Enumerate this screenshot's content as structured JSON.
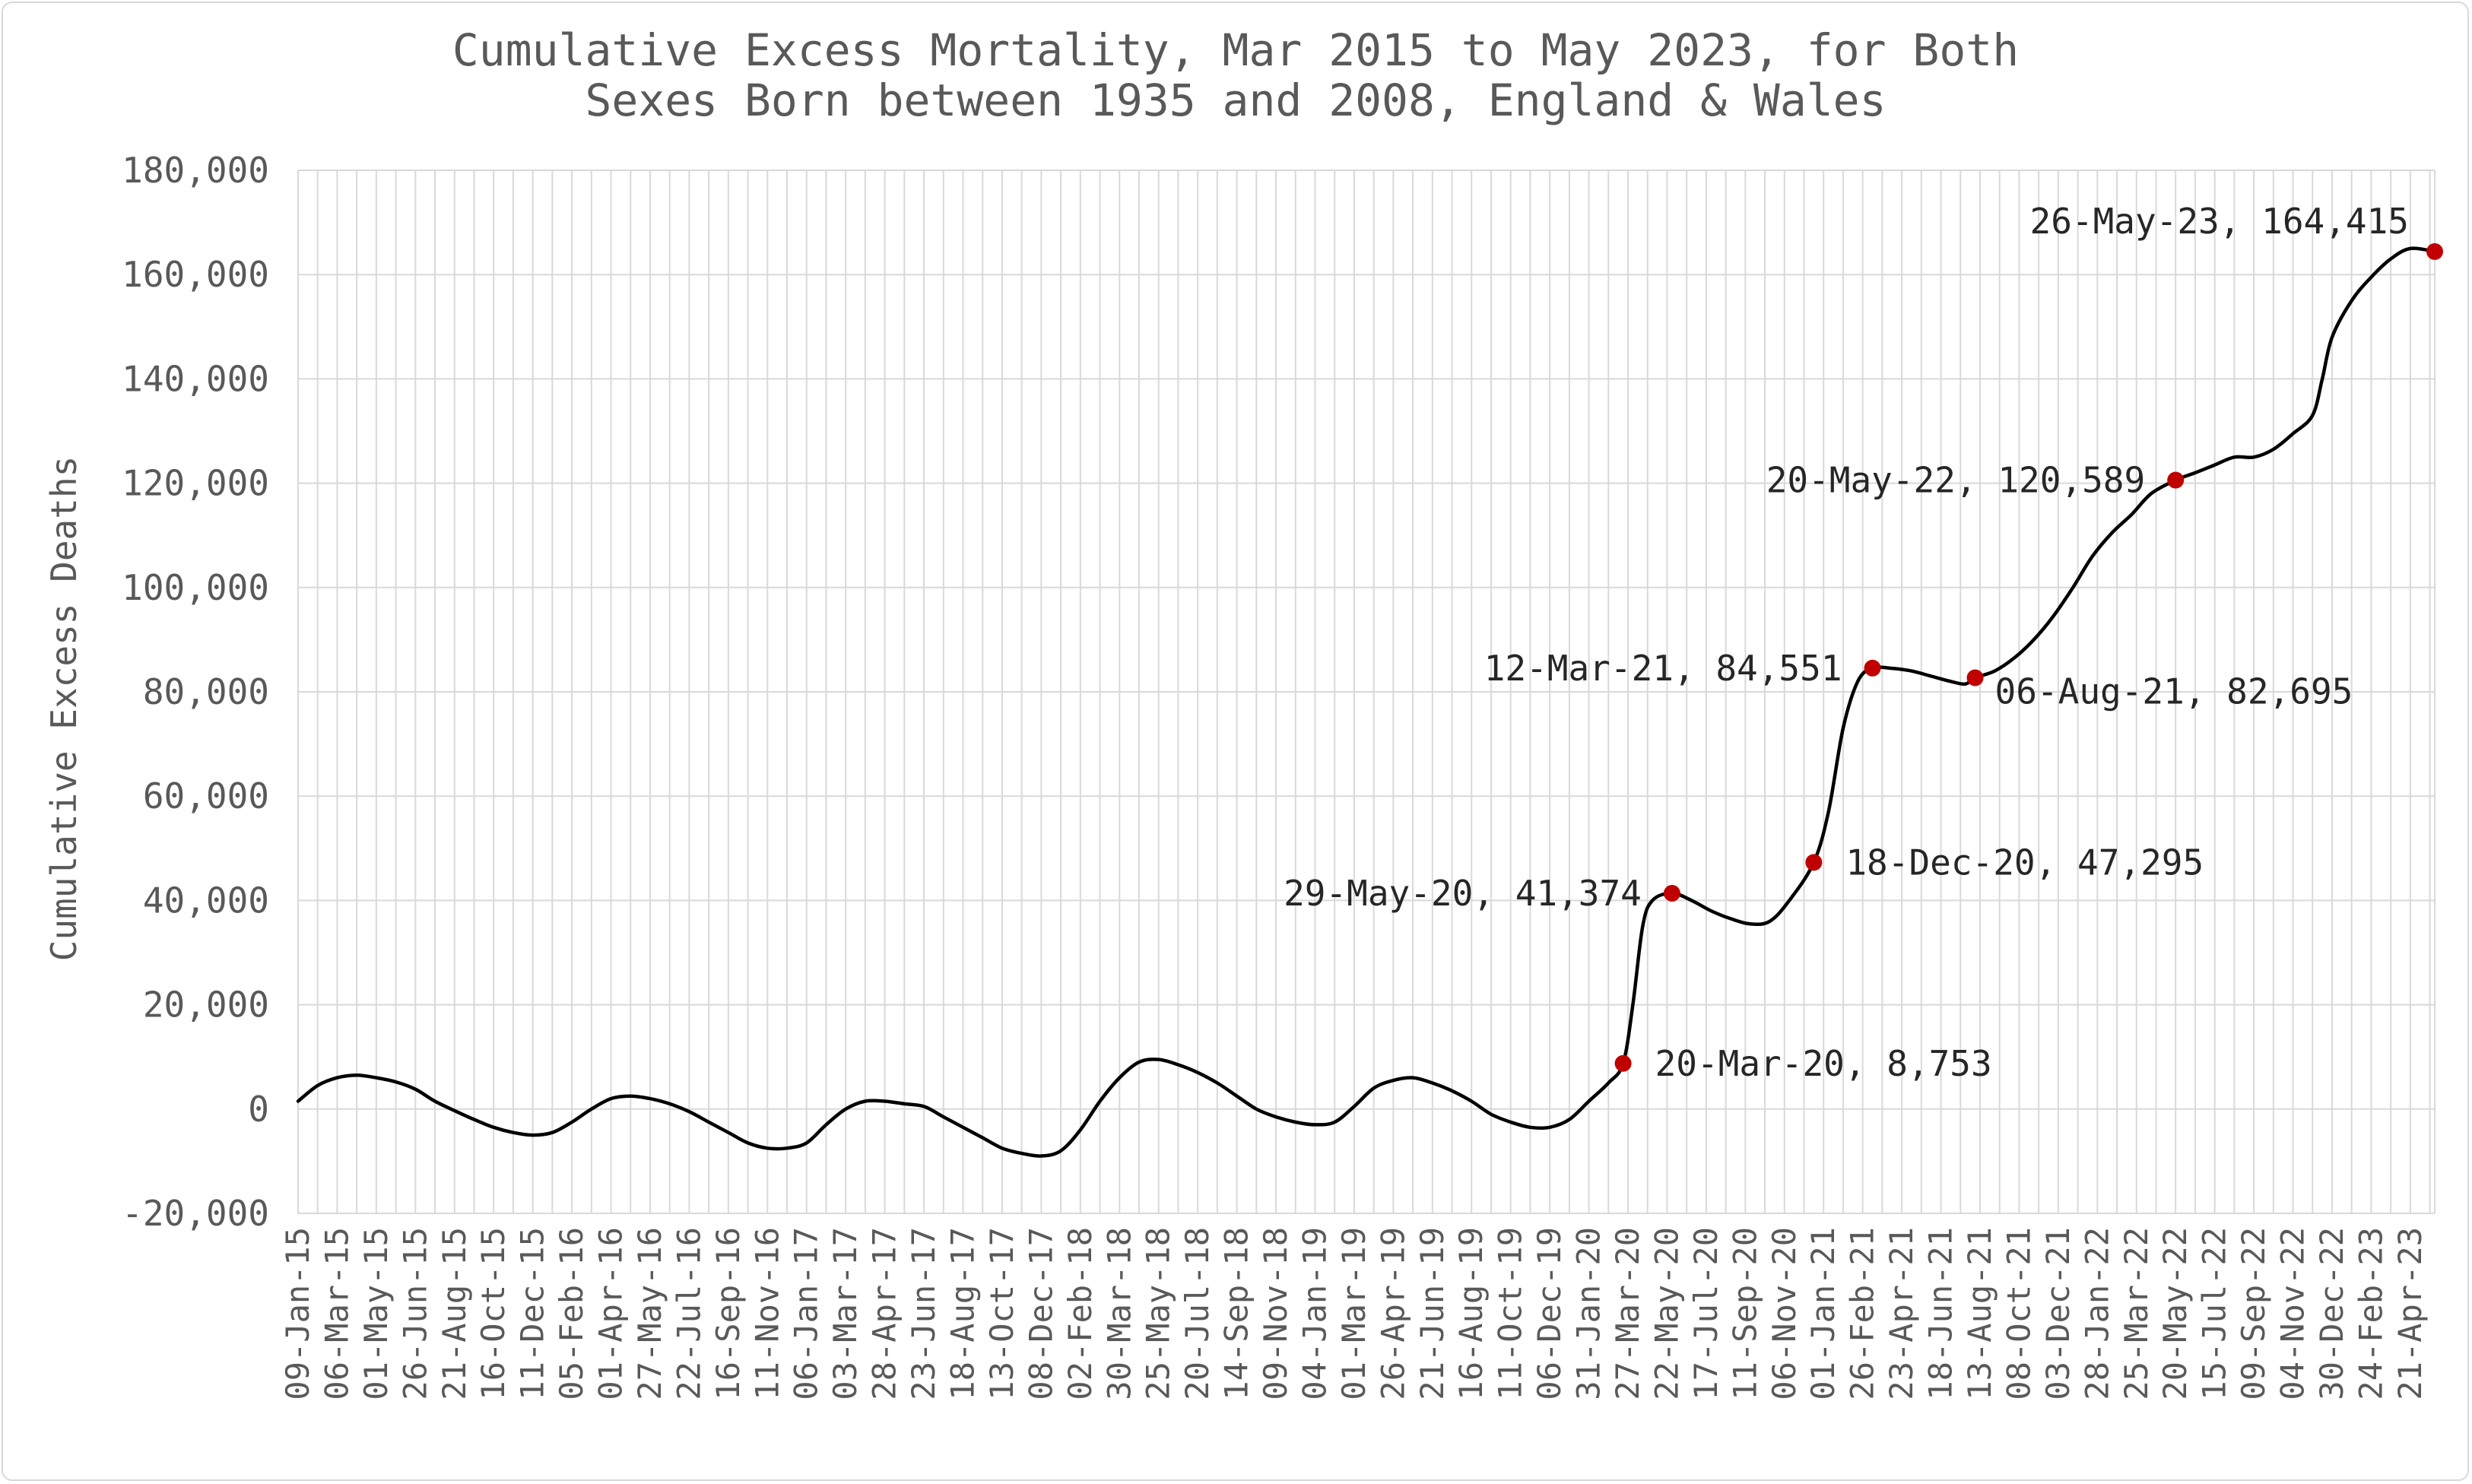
{
  "chart_data": {
    "type": "line",
    "title_lines": [
      "Cumulative Excess Mortality, Mar 2015 to May 2023, for Both",
      "Sexes Born between 1935 and 2008, England & Wales"
    ],
    "xlabel": "",
    "ylabel": "Cumulative Excess Deaths",
    "ylim": [
      -20000,
      180000
    ],
    "yticks": [
      -20000,
      0,
      20000,
      40000,
      60000,
      80000,
      100000,
      120000,
      140000,
      160000,
      180000
    ],
    "ytick_labels": [
      "-20,000",
      "0",
      "20,000",
      "40,000",
      "60,000",
      "80,000",
      "100,000",
      "120,000",
      "140,000",
      "160,000",
      "180,000"
    ],
    "x_start": "2015-01-09",
    "x_end": "2023-05-26",
    "xtick_labels": [
      "09-Jan-15",
      "06-Mar-15",
      "01-May-15",
      "26-Jun-15",
      "21-Aug-15",
      "16-Oct-15",
      "11-Dec-15",
      "05-Feb-16",
      "01-Apr-16",
      "27-May-16",
      "22-Jul-16",
      "16-Sep-16",
      "11-Nov-16",
      "06-Jan-17",
      "03-Mar-17",
      "28-Apr-17",
      "23-Jun-17",
      "18-Aug-17",
      "13-Oct-17",
      "08-Dec-17",
      "02-Feb-18",
      "30-Mar-18",
      "25-May-18",
      "20-Jul-18",
      "14-Sep-18",
      "09-Nov-18",
      "04-Jan-19",
      "01-Mar-19",
      "26-Apr-19",
      "21-Jun-19",
      "16-Aug-19",
      "11-Oct-19",
      "06-Dec-19",
      "31-Jan-20",
      "27-Mar-20",
      "22-May-20",
      "17-Jul-20",
      "11-Sep-20",
      "06-Nov-20",
      "01-Jan-21",
      "26-Feb-21",
      "23-Apr-21",
      "18-Jun-21",
      "13-Aug-21",
      "08-Oct-21",
      "03-Dec-21",
      "28-Jan-22",
      "25-Mar-22",
      "20-May-22",
      "15-Jul-22",
      "09-Sep-22",
      "04-Nov-22",
      "30-Dec-22",
      "24-Feb-23",
      "21-Apr-23"
    ],
    "grid": true,
    "legend": "none",
    "series": [
      {
        "color": "#000000",
        "points": [
          [
            "2015-01-09",
            1500
          ],
          [
            "2015-02-06",
            4500
          ],
          [
            "2015-03-06",
            6000
          ],
          [
            "2015-04-03",
            6500
          ],
          [
            "2015-05-01",
            6000
          ],
          [
            "2015-05-29",
            5200
          ],
          [
            "2015-06-26",
            3800
          ],
          [
            "2015-07-24",
            1500
          ],
          [
            "2015-08-21",
            -300
          ],
          [
            "2015-09-18",
            -2000
          ],
          [
            "2015-10-16",
            -3500
          ],
          [
            "2015-11-13",
            -4500
          ],
          [
            "2015-12-11",
            -5000
          ],
          [
            "2016-01-08",
            -4500
          ],
          [
            "2016-02-05",
            -2500
          ],
          [
            "2016-03-04",
            0
          ],
          [
            "2016-04-01",
            2000
          ],
          [
            "2016-04-29",
            2500
          ],
          [
            "2016-05-27",
            2000
          ],
          [
            "2016-06-24",
            1000
          ],
          [
            "2016-07-22",
            -500
          ],
          [
            "2016-08-19",
            -2500
          ],
          [
            "2016-09-16",
            -4500
          ],
          [
            "2016-10-14",
            -6500
          ],
          [
            "2016-11-11",
            -7500
          ],
          [
            "2016-12-09",
            -7500
          ],
          [
            "2017-01-06",
            -6500
          ],
          [
            "2017-02-03",
            -3000
          ],
          [
            "2017-03-03",
            0
          ],
          [
            "2017-03-31",
            1500
          ],
          [
            "2017-04-28",
            1500
          ],
          [
            "2017-05-26",
            1000
          ],
          [
            "2017-06-23",
            500
          ],
          [
            "2017-07-21",
            -1500
          ],
          [
            "2017-08-18",
            -3500
          ],
          [
            "2017-09-15",
            -5500
          ],
          [
            "2017-10-13",
            -7500
          ],
          [
            "2017-11-10",
            -8500
          ],
          [
            "2017-12-08",
            -9000
          ],
          [
            "2018-01-05",
            -8000
          ],
          [
            "2018-02-02",
            -4000
          ],
          [
            "2018-03-02",
            1500
          ],
          [
            "2018-03-30",
            6000
          ],
          [
            "2018-04-27",
            9000
          ],
          [
            "2018-05-25",
            9500
          ],
          [
            "2018-06-22",
            8500
          ],
          [
            "2018-07-20",
            7000
          ],
          [
            "2018-08-17",
            5000
          ],
          [
            "2018-09-14",
            2500
          ],
          [
            "2018-10-12",
            0
          ],
          [
            "2018-11-09",
            -1500
          ],
          [
            "2018-12-07",
            -2500
          ],
          [
            "2019-01-04",
            -3000
          ],
          [
            "2019-02-01",
            -2500
          ],
          [
            "2019-03-01",
            500
          ],
          [
            "2019-03-29",
            4000
          ],
          [
            "2019-04-26",
            5500
          ],
          [
            "2019-05-24",
            6000
          ],
          [
            "2019-06-21",
            5000
          ],
          [
            "2019-07-19",
            3500
          ],
          [
            "2019-08-16",
            1500
          ],
          [
            "2019-09-13",
            -1000
          ],
          [
            "2019-10-11",
            -2500
          ],
          [
            "2019-11-08",
            -3500
          ],
          [
            "2019-12-06",
            -3500
          ],
          [
            "2020-01-03",
            -2000
          ],
          [
            "2020-01-31",
            1500
          ],
          [
            "2020-02-28",
            5000
          ],
          [
            "2020-03-20",
            8753
          ],
          [
            "2020-04-03",
            20000
          ],
          [
            "2020-04-17",
            35000
          ],
          [
            "2020-05-01",
            40000
          ],
          [
            "2020-05-29",
            41374
          ],
          [
            "2020-06-26",
            40000
          ],
          [
            "2020-07-24",
            38000
          ],
          [
            "2020-08-21",
            36500
          ],
          [
            "2020-09-18",
            35500
          ],
          [
            "2020-10-16",
            36000
          ],
          [
            "2020-11-13",
            40000
          ],
          [
            "2020-12-18",
            47295
          ],
          [
            "2021-01-08",
            57000
          ],
          [
            "2021-01-29",
            73000
          ],
          [
            "2021-02-19",
            82000
          ],
          [
            "2021-03-12",
            84551
          ],
          [
            "2021-04-09",
            84500
          ],
          [
            "2021-05-07",
            84000
          ],
          [
            "2021-06-04",
            83000
          ],
          [
            "2021-07-02",
            82000
          ],
          [
            "2021-07-23",
            81500
          ],
          [
            "2021-08-06",
            82695
          ],
          [
            "2021-09-03",
            84000
          ],
          [
            "2021-10-01",
            86500
          ],
          [
            "2021-10-29",
            90000
          ],
          [
            "2021-11-26",
            94500
          ],
          [
            "2021-12-24",
            100000
          ],
          [
            "2022-01-21",
            106000
          ],
          [
            "2022-02-18",
            110500
          ],
          [
            "2022-03-18",
            114000
          ],
          [
            "2022-04-15",
            118000
          ],
          [
            "2022-05-20",
            120589
          ],
          [
            "2022-06-17",
            122000
          ],
          [
            "2022-07-15",
            123500
          ],
          [
            "2022-08-12",
            125000
          ],
          [
            "2022-09-09",
            125000
          ],
          [
            "2022-10-07",
            126500
          ],
          [
            "2022-11-04",
            129500
          ],
          [
            "2022-12-02",
            133000
          ],
          [
            "2022-12-16",
            140000
          ],
          [
            "2022-12-30",
            148000
          ],
          [
            "2023-01-27",
            155000
          ],
          [
            "2023-02-24",
            159500
          ],
          [
            "2023-03-24",
            163000
          ],
          [
            "2023-04-21",
            165000
          ],
          [
            "2023-05-26",
            164415
          ]
        ]
      }
    ],
    "highlight_color": "#c00000",
    "highlights": [
      {
        "date": "2020-03-20",
        "value": 8753,
        "label": "20-Mar-20, 8,753",
        "side": "right"
      },
      {
        "date": "2020-05-29",
        "value": 41374,
        "label": "29-May-20, 41,374",
        "side": "left"
      },
      {
        "date": "2020-12-18",
        "value": 47295,
        "label": "18-Dec-20, 47,295",
        "side": "right"
      },
      {
        "date": "2021-03-12",
        "value": 84551,
        "label": "12-Mar-21, 84,551",
        "side": "left"
      },
      {
        "date": "2021-08-06",
        "value": 82695,
        "label": "06-Aug-21, 82,695",
        "side": "right-below"
      },
      {
        "date": "2022-05-20",
        "value": 120589,
        "label": "20-May-22, 120,589",
        "side": "left"
      },
      {
        "date": "2023-05-26",
        "value": 164415,
        "label": "26-May-23, 164,415",
        "side": "left-above"
      }
    ]
  }
}
